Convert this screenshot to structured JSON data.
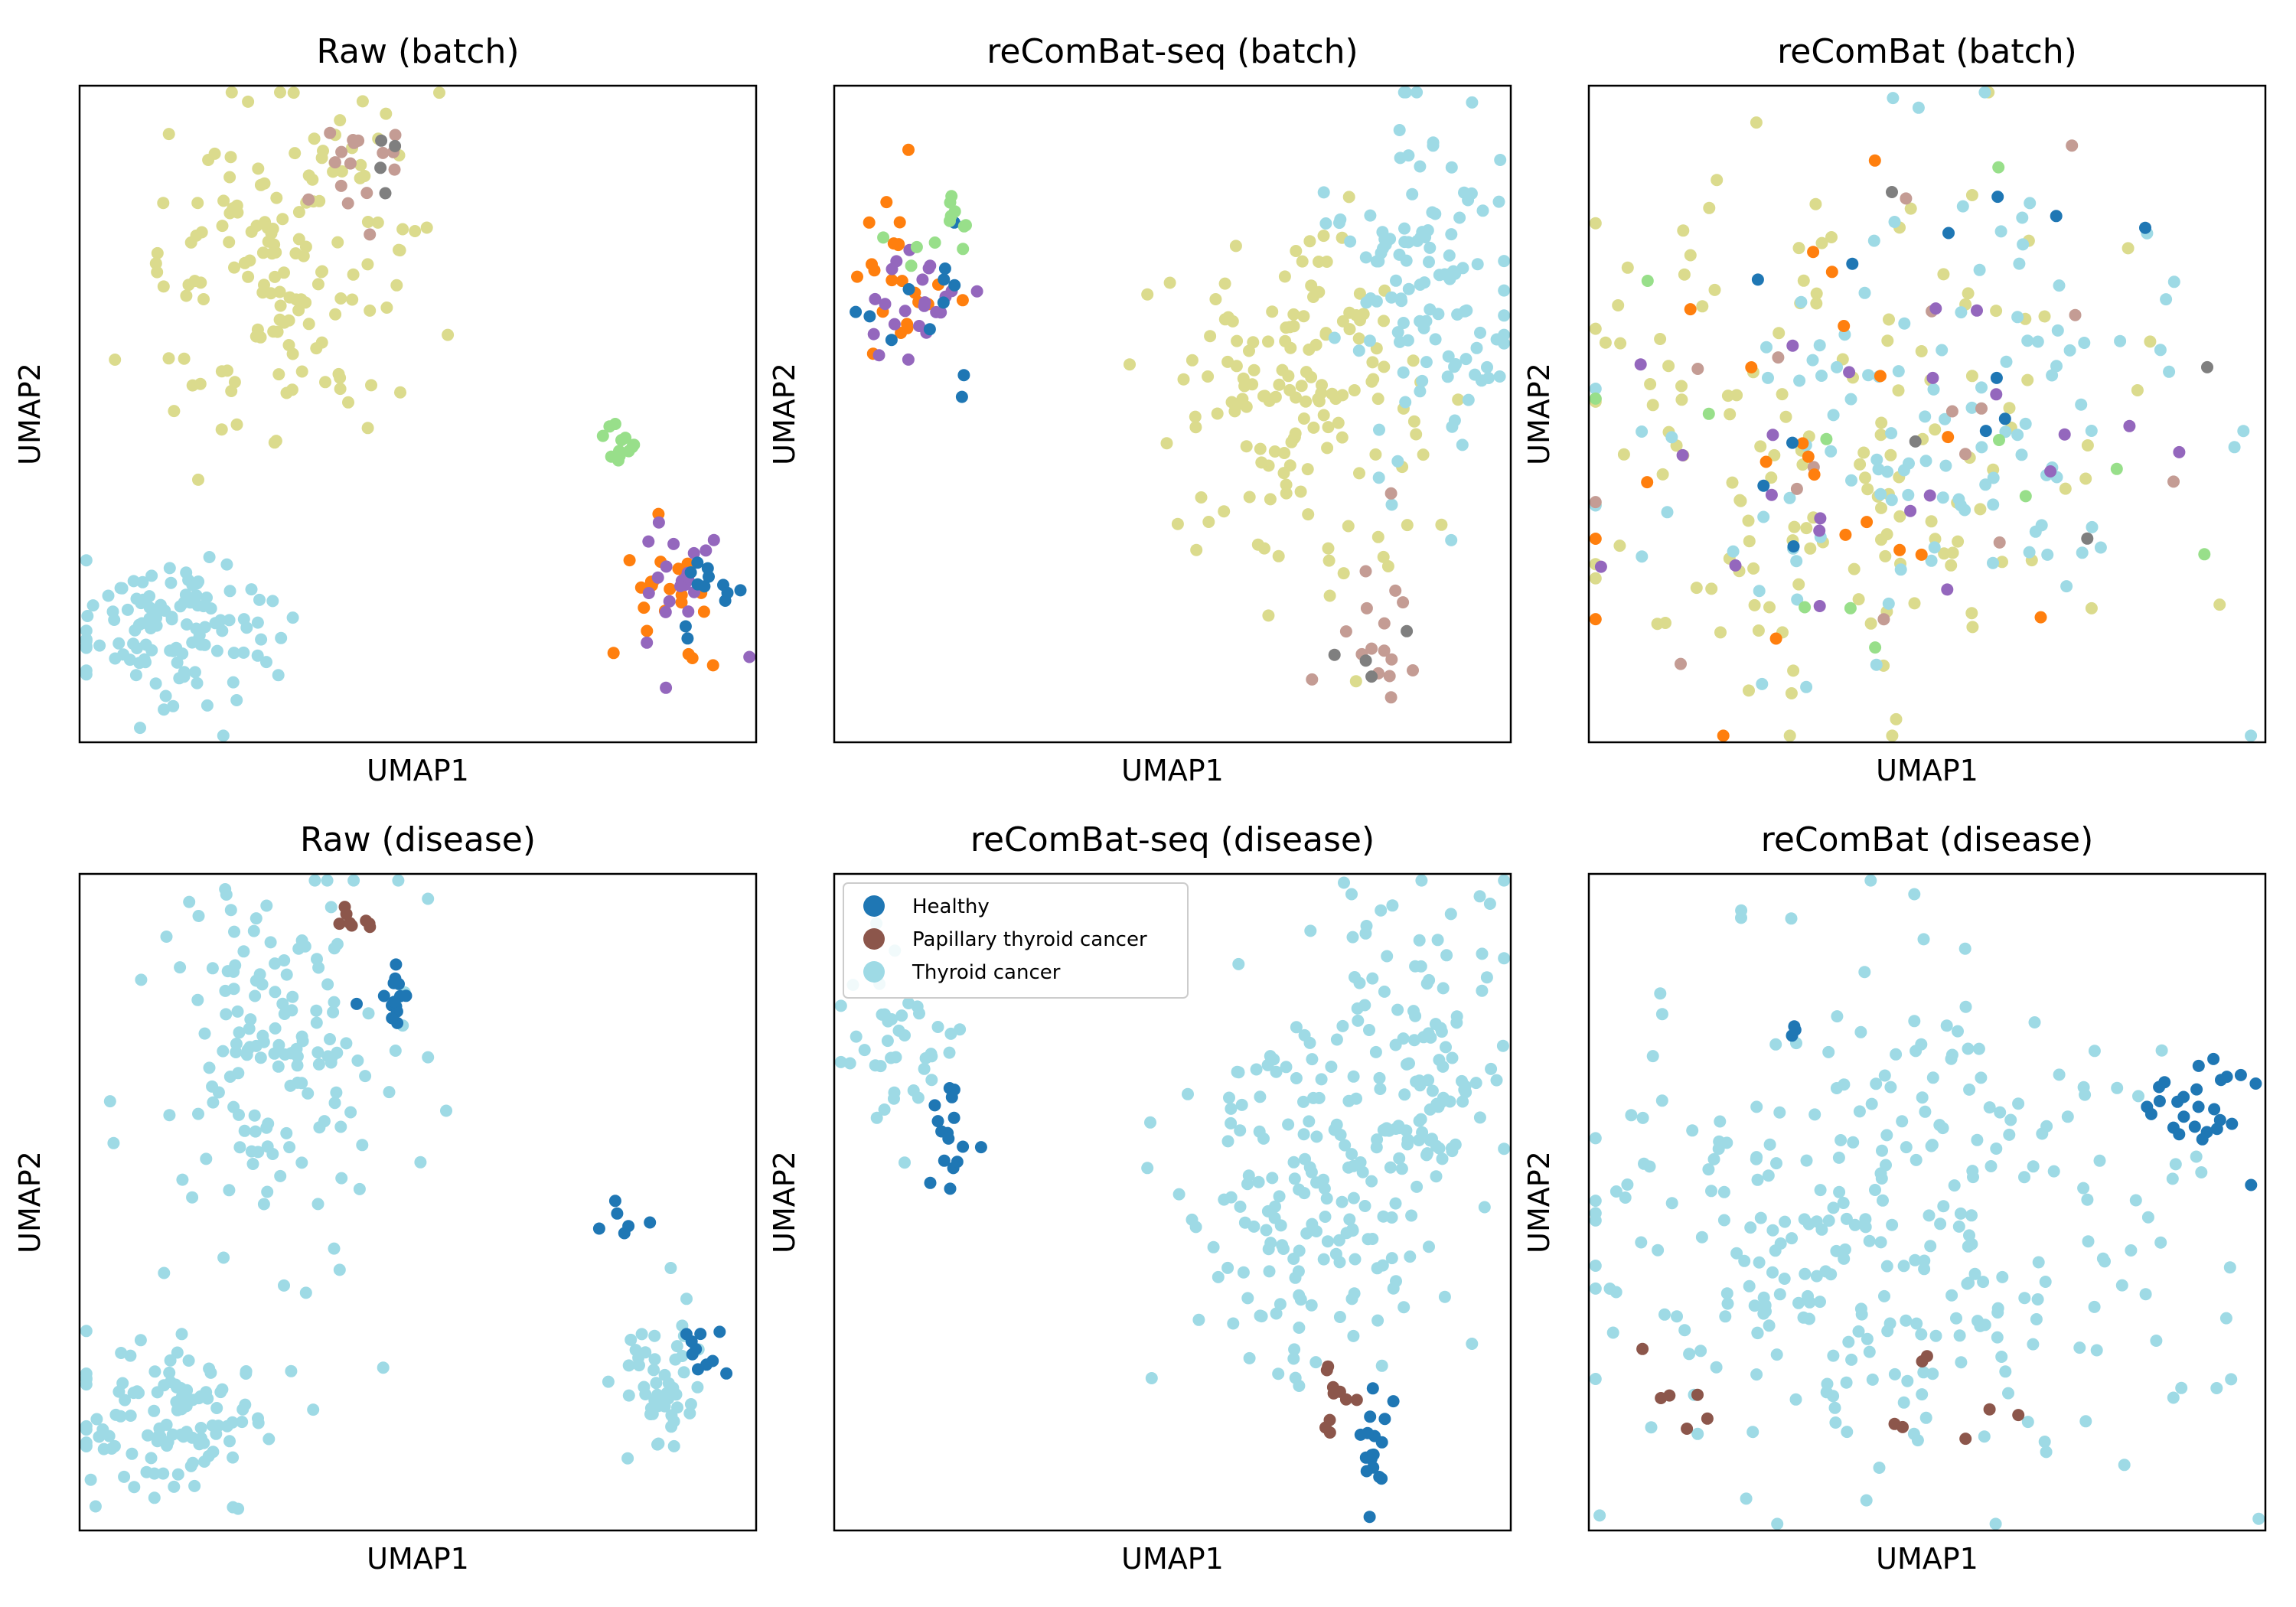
{
  "figure": {
    "legend_items": [
      {
        "label": "Healthy",
        "color": "#1f77b4"
      },
      {
        "label": "Papillary thyroid cancer",
        "color": "#8c564b"
      },
      {
        "label": "Thyroid cancer",
        "color": "#9edae5"
      }
    ]
  },
  "chart_data": [
    {
      "type": "scatter",
      "title": "Raw (batch)",
      "xlabel": "UMAP1",
      "ylabel": "UMAP2",
      "ticks": false,
      "xlim": [
        0,
        100
      ],
      "ylim": [
        0,
        100
      ],
      "clusters": [
        {
          "color": "#dbdb8d",
          "cx": 30,
          "cy": 72,
          "sx": 9,
          "sy": 14,
          "n": 150
        },
        {
          "color": "#9edae5",
          "cx": 14,
          "cy": 17,
          "sx": 8,
          "sy": 6,
          "n": 115
        },
        {
          "color": "#c49c94",
          "cx": 42,
          "cy": 89,
          "sx": 3,
          "sy": 5,
          "n": 16
        },
        {
          "color": "#7f7f7f",
          "cx": 44,
          "cy": 87,
          "sx": 2,
          "sy": 3,
          "n": 4
        },
        {
          "color": "#98df8a",
          "cx": 80,
          "cy": 46,
          "sx": 1.5,
          "sy": 2,
          "n": 12
        },
        {
          "color": "#ff7f0e",
          "cx": 87,
          "cy": 22,
          "sx": 4,
          "sy": 5,
          "n": 22
        },
        {
          "color": "#9467bd",
          "cx": 88,
          "cy": 23,
          "sx": 4,
          "sy": 5,
          "n": 22
        },
        {
          "color": "#1f77b4",
          "cx": 93,
          "cy": 23,
          "sx": 2,
          "sy": 3,
          "n": 12
        }
      ]
    },
    {
      "type": "scatter",
      "title": "reComBat-seq (batch)",
      "xlabel": "UMAP1",
      "ylabel": "UMAP2",
      "ticks": false,
      "xlim": [
        0,
        100
      ],
      "ylim": [
        0,
        100
      ],
      "clusters": [
        {
          "color": "#dbdb8d",
          "cx": 70,
          "cy": 52,
          "sx": 9,
          "sy": 14,
          "n": 150
        },
        {
          "color": "#9edae5",
          "cx": 87,
          "cy": 70,
          "sx": 6,
          "sy": 16,
          "n": 115
        },
        {
          "color": "#c49c94",
          "cx": 80,
          "cy": 17,
          "sx": 3,
          "sy": 8,
          "n": 16
        },
        {
          "color": "#7f7f7f",
          "cx": 79,
          "cy": 22,
          "sx": 4,
          "sy": 7,
          "n": 4
        },
        {
          "color": "#ff7f0e",
          "cx": 10,
          "cy": 71,
          "sx": 3,
          "sy": 6,
          "n": 22
        },
        {
          "color": "#9467bd",
          "cx": 11,
          "cy": 68,
          "sx": 4,
          "sy": 6,
          "n": 22
        },
        {
          "color": "#1f77b4",
          "cx": 14,
          "cy": 65,
          "sx": 4,
          "sy": 6,
          "n": 12
        },
        {
          "color": "#98df8a",
          "cx": 15,
          "cy": 78,
          "sx": 4,
          "sy": 3,
          "n": 12
        }
      ]
    },
    {
      "type": "scatter",
      "title": "reComBat (batch)",
      "xlabel": "UMAP1",
      "ylabel": "UMAP2",
      "ticks": false,
      "xlim": [
        0,
        100
      ],
      "ylim": [
        0,
        100
      ],
      "clusters": [
        {
          "color": "#dbdb8d",
          "cx": 35,
          "cy": 45,
          "sx": 20,
          "sy": 20,
          "n": 150
        },
        {
          "color": "#9edae5",
          "cx": 52,
          "cy": 48,
          "sx": 20,
          "sy": 18,
          "n": 115
        },
        {
          "color": "#c49c94",
          "cx": 40,
          "cy": 50,
          "sx": 25,
          "sy": 20,
          "n": 16
        },
        {
          "color": "#7f7f7f",
          "cx": 55,
          "cy": 55,
          "sx": 25,
          "sy": 15,
          "n": 4
        },
        {
          "color": "#98df8a",
          "cx": 40,
          "cy": 45,
          "sx": 25,
          "sy": 20,
          "n": 12
        },
        {
          "color": "#ff7f0e",
          "cx": 38,
          "cy": 42,
          "sx": 22,
          "sy": 22,
          "n": 22
        },
        {
          "color": "#9467bd",
          "cx": 45,
          "cy": 50,
          "sx": 25,
          "sy": 18,
          "n": 22
        },
        {
          "color": "#1f77b4",
          "cx": 55,
          "cy": 55,
          "sx": 25,
          "sy": 15,
          "n": 12
        }
      ]
    },
    {
      "type": "scatter",
      "title": "Raw (disease)",
      "xlabel": "UMAP1",
      "ylabel": "UMAP2",
      "ticks": false,
      "xlim": [
        0,
        100
      ],
      "ylim": [
        0,
        100
      ],
      "clusters": [
        {
          "color": "#9edae5",
          "cx": 30,
          "cy": 72,
          "sx": 9,
          "sy": 14,
          "n": 150
        },
        {
          "color": "#9edae5",
          "cx": 14,
          "cy": 17,
          "sx": 8,
          "sy": 6,
          "n": 115
        },
        {
          "color": "#9edae5",
          "cx": 86,
          "cy": 22,
          "sx": 3,
          "sy": 5,
          "n": 50
        },
        {
          "color": "#1f77b4",
          "cx": 46,
          "cy": 82,
          "sx": 2,
          "sy": 3,
          "n": 14
        },
        {
          "color": "#8c564b",
          "cx": 41,
          "cy": 93,
          "sx": 1.5,
          "sy": 2,
          "n": 8
        },
        {
          "color": "#1f77b4",
          "cx": 81,
          "cy": 47,
          "sx": 1.2,
          "sy": 1.5,
          "n": 6
        },
        {
          "color": "#1f77b4",
          "cx": 92,
          "cy": 27,
          "sx": 1.5,
          "sy": 2,
          "n": 10
        }
      ]
    },
    {
      "type": "scatter",
      "title": "reComBat-seq (disease)",
      "xlabel": "UMAP1",
      "ylabel": "UMAP2",
      "ticks": false,
      "xlim": [
        0,
        100
      ],
      "ylim": [
        0,
        100
      ],
      "legend_position": "top-left",
      "clusters": [
        {
          "color": "#9edae5",
          "cx": 70,
          "cy": 52,
          "sx": 9,
          "sy": 14,
          "n": 150
        },
        {
          "color": "#9edae5",
          "cx": 87,
          "cy": 70,
          "sx": 6,
          "sy": 16,
          "n": 115
        },
        {
          "color": "#9edae5",
          "cx": 10,
          "cy": 73,
          "sx": 5,
          "sy": 7,
          "n": 40
        },
        {
          "color": "#1f77b4",
          "cx": 17,
          "cy": 60,
          "sx": 2,
          "sy": 5,
          "n": 16
        },
        {
          "color": "#8c564b",
          "cx": 74,
          "cy": 20,
          "sx": 1.5,
          "sy": 3,
          "n": 10
        },
        {
          "color": "#1f77b4",
          "cx": 80,
          "cy": 10,
          "sx": 1.5,
          "sy": 5,
          "n": 18
        }
      ]
    },
    {
      "type": "scatter",
      "title": "reComBat (disease)",
      "xlabel": "UMAP1",
      "ylabel": "UMAP2",
      "ticks": false,
      "xlim": [
        0,
        100
      ],
      "ylim": [
        0,
        100
      ],
      "clusters": [
        {
          "color": "#9edae5",
          "cx": 45,
          "cy": 45,
          "sx": 22,
          "sy": 20,
          "n": 300
        },
        {
          "color": "#1f77b4",
          "cx": 88,
          "cy": 64,
          "sx": 5,
          "sy": 4,
          "n": 26
        },
        {
          "color": "#1f77b4",
          "cx": 30,
          "cy": 76,
          "sx": 1.5,
          "sy": 1.5,
          "n": 3
        },
        {
          "color": "#8c564b",
          "cx": 14,
          "cy": 20,
          "sx": 3,
          "sy": 3,
          "n": 6
        },
        {
          "color": "#8c564b",
          "cx": 50,
          "cy": 18,
          "sx": 6,
          "sy": 4,
          "n": 7
        }
      ]
    }
  ]
}
